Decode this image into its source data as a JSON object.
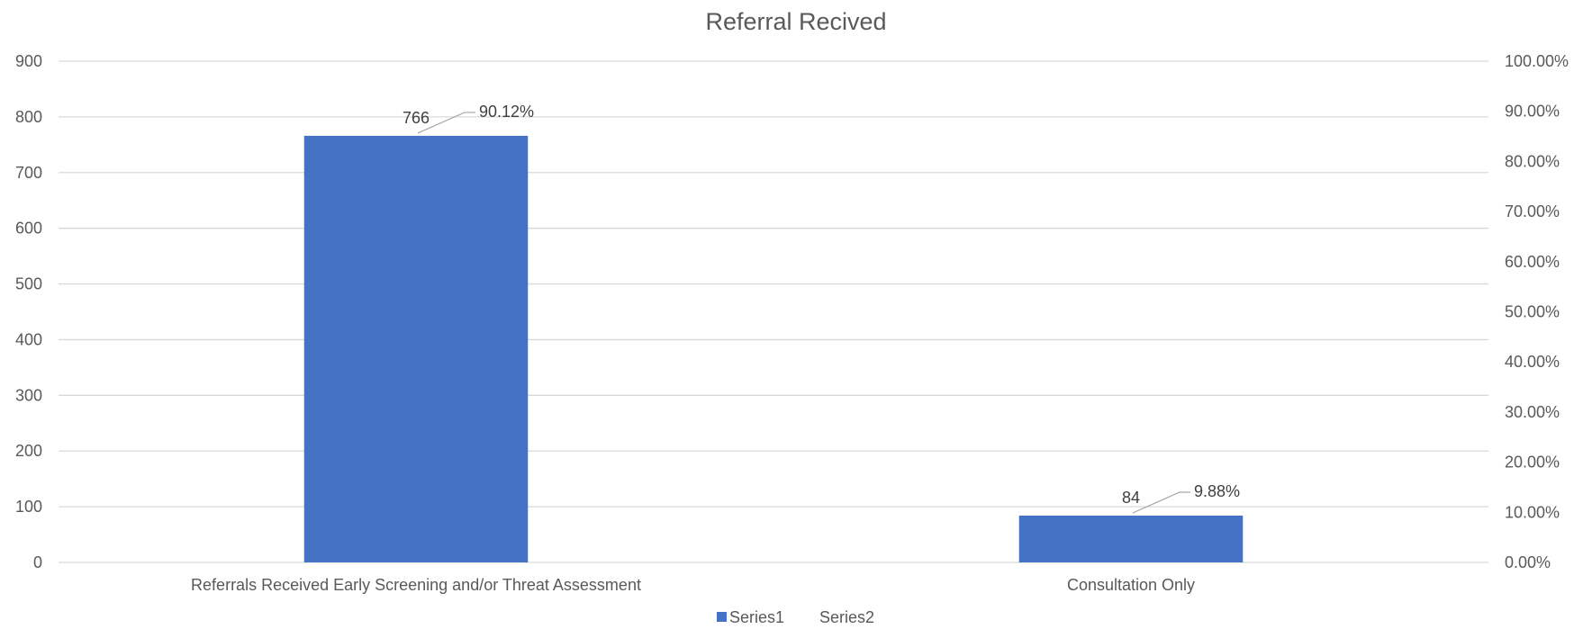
{
  "chart_data": {
    "type": "bar",
    "title": "Referral Recived",
    "categories": [
      "Referrals Received Early Screening and/or Threat Assessment",
      "Consultation Only"
    ],
    "series": [
      {
        "name": "Series1",
        "values": [
          766,
          84
        ],
        "color": "#4472c4",
        "axis": "primary"
      },
      {
        "name": "Series2",
        "values": [
          0.9012,
          0.0988
        ],
        "axis": "secondary"
      }
    ],
    "data_labels": {
      "series1": [
        "766",
        "84"
      ],
      "series2": [
        "90.12%",
        "9.88%"
      ]
    },
    "ylim": [
      0,
      900
    ],
    "y_ticks": [
      "0",
      "100",
      "200",
      "300",
      "400",
      "500",
      "600",
      "700",
      "800",
      "900"
    ],
    "y2lim": [
      0,
      1
    ],
    "y2_ticks": [
      "0.00%",
      "10.00%",
      "20.00%",
      "30.00%",
      "40.00%",
      "50.00%",
      "60.00%",
      "70.00%",
      "80.00%",
      "90.00%",
      "100.00%"
    ],
    "xlabel": "",
    "ylabel": "",
    "grid": true,
    "legend_position": "bottom",
    "legend": [
      "Series1",
      "Series2"
    ]
  }
}
